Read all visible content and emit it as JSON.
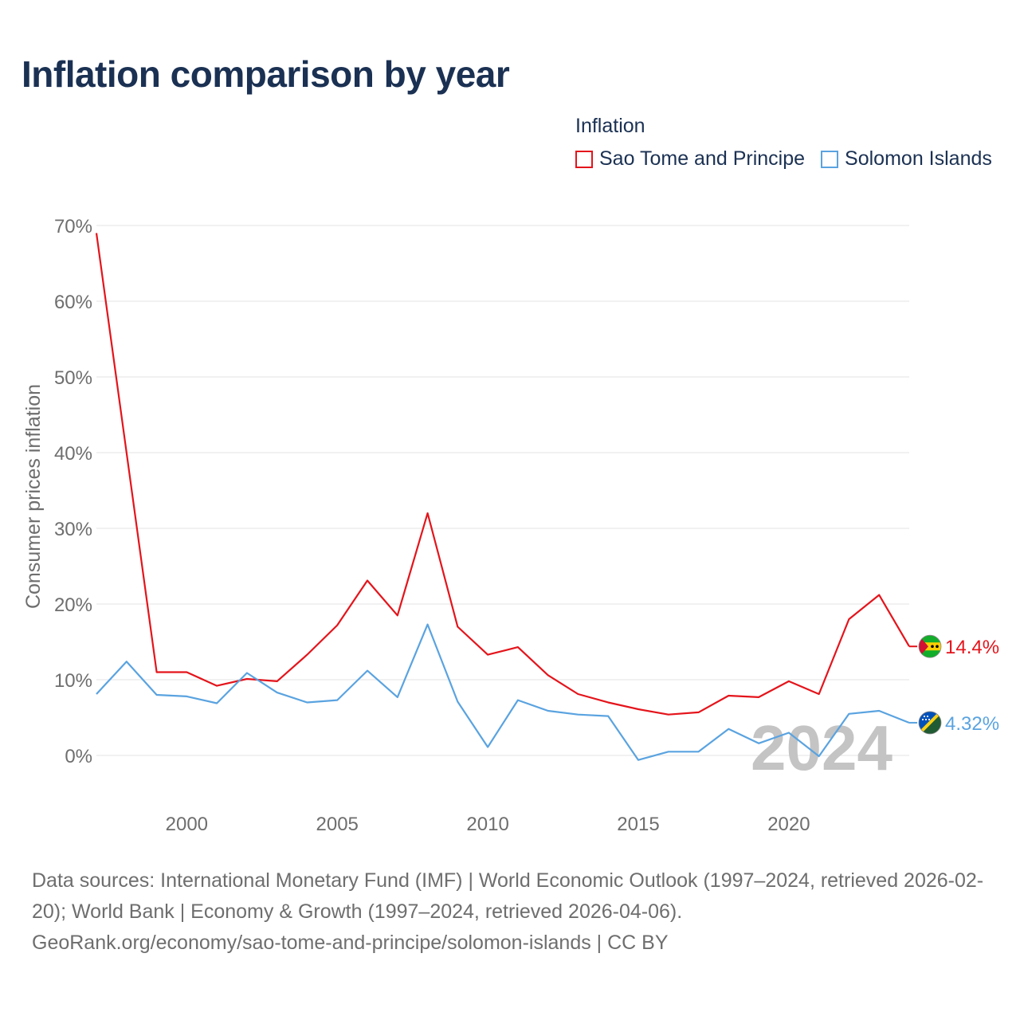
{
  "title": "Inflation comparison by year",
  "legend_title": "Inflation",
  "watermark_year": "2024",
  "footer": {
    "sources": "Data sources: International Monetary Fund (IMF) | World Economic Outlook (1997–2024, retrieved 2026-02-20); World Bank | Economy & Growth (1997–2024, retrieved 2026-04-06).",
    "link": "GeoRank.org/economy/sao-tome-and-principe/solomon-islands | CC BY"
  },
  "chart_data": {
    "type": "line",
    "title": "Inflation comparison by year",
    "xlabel": "",
    "ylabel": "Consumer prices inflation",
    "ylim": [
      -5,
      72
    ],
    "xlim": [
      1997,
      2024
    ],
    "yticks": [
      0,
      10,
      20,
      30,
      40,
      50,
      60,
      70
    ],
    "ytick_labels": [
      "0%",
      "10%",
      "20%",
      "30%",
      "40%",
      "50%",
      "60%",
      "70%"
    ],
    "xticks": [
      2000,
      2005,
      2010,
      2015,
      2020
    ],
    "xtick_labels": [
      "2000",
      "2005",
      "2010",
      "2015",
      "2020"
    ],
    "grid": true,
    "legend_position": "top-right",
    "x": [
      1997,
      1998,
      1999,
      2000,
      2001,
      2002,
      2003,
      2004,
      2005,
      2006,
      2007,
      2008,
      2009,
      2010,
      2011,
      2012,
      2013,
      2014,
      2015,
      2016,
      2017,
      2018,
      2019,
      2020,
      2021,
      2022,
      2023,
      2024
    ],
    "series": [
      {
        "name": "Sao Tome and Principe",
        "color": "#e4141b",
        "end_label": "14.4%",
        "flag": "sao-tome-and-principe-flag-icon",
        "values": [
          69.0,
          40.0,
          11.0,
          11.0,
          9.2,
          10.1,
          9.8,
          13.3,
          17.2,
          23.1,
          18.5,
          32.0,
          17.0,
          13.3,
          14.3,
          10.6,
          8.1,
          7.0,
          6.1,
          5.4,
          5.7,
          7.9,
          7.7,
          9.8,
          8.1,
          18.0,
          21.2,
          14.4
        ]
      },
      {
        "name": "Solomon Islands",
        "color": "#5aa3e0",
        "end_label": "4.32%",
        "flag": "solomon-islands-flag-icon",
        "values": [
          8.1,
          12.4,
          8.0,
          7.8,
          6.9,
          10.9,
          8.3,
          7.0,
          7.3,
          11.2,
          7.7,
          17.3,
          7.1,
          1.1,
          7.3,
          5.9,
          5.4,
          5.2,
          -0.6,
          0.5,
          0.5,
          3.5,
          1.6,
          3.0,
          -0.1,
          5.5,
          5.9,
          4.32
        ]
      }
    ]
  }
}
